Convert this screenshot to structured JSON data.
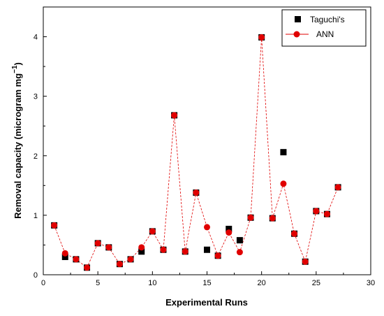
{
  "chart_data": {
    "type": "scatter",
    "xlabel": "Experimental Runs",
    "ylabel": "Removal capacity (microgram mg",
    "ylabel_superscript": "−1",
    "ylabel_close": ")",
    "xlim": [
      0,
      30
    ],
    "ylim": [
      0,
      4.5
    ],
    "xticks": [
      0,
      5,
      10,
      15,
      20,
      25,
      30
    ],
    "yticks": [
      0,
      1,
      2,
      3,
      4
    ],
    "legend": {
      "placement": "top-right"
    },
    "series": [
      {
        "name": "Taguchi's",
        "marker": "square",
        "color": "#000000",
        "x": [
          1,
          2,
          3,
          4,
          5,
          6,
          7,
          8,
          9,
          10,
          11,
          12,
          13,
          14,
          15,
          16,
          17,
          18,
          19,
          20,
          21,
          22,
          23,
          24,
          25,
          26,
          27
        ],
        "y": [
          0.83,
          0.3,
          0.26,
          0.12,
          0.53,
          0.46,
          0.18,
          0.26,
          0.39,
          0.73,
          0.42,
          2.68,
          0.39,
          1.38,
          0.42,
          0.32,
          0.77,
          0.58,
          0.96,
          3.99,
          0.95,
          2.06,
          0.69,
          0.22,
          1.07,
          1.02,
          1.47
        ]
      },
      {
        "name": "ANN",
        "marker": "circle",
        "color": "#e00000",
        "line": "dashed",
        "x": [
          1,
          2,
          3,
          4,
          5,
          6,
          7,
          8,
          9,
          10,
          11,
          12,
          13,
          14,
          15,
          16,
          17,
          18,
          19,
          20,
          21,
          22,
          23,
          24,
          25,
          26,
          27
        ],
        "y": [
          0.83,
          0.36,
          0.26,
          0.12,
          0.53,
          0.46,
          0.18,
          0.26,
          0.46,
          0.73,
          0.42,
          2.68,
          0.39,
          1.38,
          0.8,
          0.32,
          0.71,
          0.38,
          0.96,
          3.99,
          0.95,
          1.53,
          0.69,
          0.22,
          1.07,
          1.02,
          1.47
        ]
      }
    ]
  }
}
